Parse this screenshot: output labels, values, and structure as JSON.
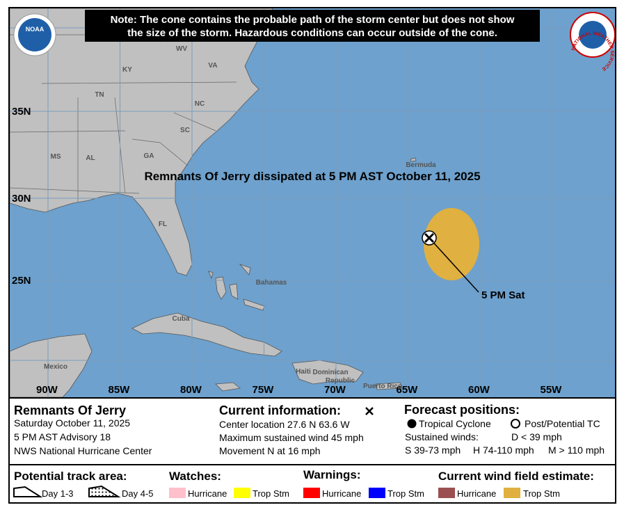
{
  "notice": [
    "Note: The cone contains the probable path of the storm center but does not show",
    "the size of the storm. Hazardous conditions can occur outside of the cone."
  ],
  "logos": {
    "noaa": "NOAA",
    "nws": "NATIONAL WEATHER SERVICE"
  },
  "map": {
    "headline": "Remnants Of Jerry dissipated at 5 PM AST October 11, 2025",
    "longitudes": [
      "90W",
      "85W",
      "80W",
      "75W",
      "70W",
      "65W",
      "60W",
      "55W"
    ],
    "latitudes": [
      "35N",
      "30N",
      "25N"
    ],
    "places": [
      "WV",
      "KY",
      "VA",
      "TN",
      "NC",
      "SC",
      "MS",
      "AL",
      "GA",
      "FL",
      "Bermuda",
      "Bahamas",
      "Cuba",
      "Mexico",
      "Haiti",
      "Dominican",
      "Republic",
      "Puerto Rico"
    ],
    "storm_label": "5 PM Sat"
  },
  "storm": {
    "name": "Remnants Of Jerry",
    "date": "Saturday October 11, 2025",
    "advisory": "5 PM AST Advisory 18",
    "office": "NWS National Hurricane Center"
  },
  "current": {
    "title": "Current information:",
    "lines": [
      "Center location 27.6 N 63.6 W",
      "Maximum sustained wind 45 mph",
      "Movement N at 16 mph"
    ]
  },
  "forecast": {
    "title": "Forecast positions:",
    "tropical": "Tropical Cyclone",
    "post": "Post/Potential TC",
    "winds_label": "Sustained winds:",
    "d": "D < 39 mph",
    "s": "S 39-73 mph",
    "h": "H 74-110 mph",
    "m": "M > 110 mph"
  },
  "legend": {
    "track_title": "Potential track area:",
    "day13": "Day 1-3",
    "day45": "Day 4-5",
    "watches": "Watches:",
    "watch_items": [
      "Hurricane",
      "Trop Stm"
    ],
    "warnings": "Warnings:",
    "warning_items": [
      "Hurricane",
      "Trop Stm"
    ],
    "wind": "Current wind field estimate:",
    "wind_items": [
      "Hurricane",
      "Trop Stm"
    ]
  }
}
